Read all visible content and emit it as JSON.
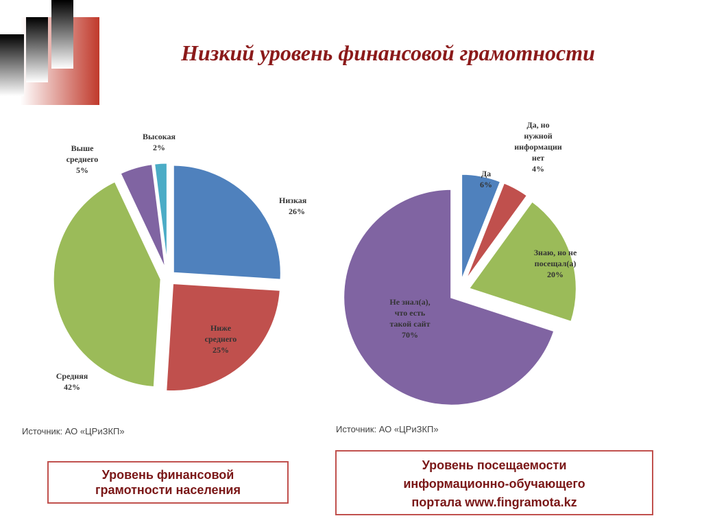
{
  "title": "Низкий уровень финансовой грамотности",
  "chart_data": [
    {
      "type": "pie",
      "categories": [
        "Низкая",
        "Ниже\nсреднего",
        "Средняя",
        "Выше\nсреднего",
        "Высокая"
      ],
      "values": [
        26,
        25,
        42,
        5,
        2
      ],
      "value_labels": [
        "26%",
        "25%",
        "42%",
        "5%",
        "2%"
      ],
      "colors": [
        "#4f81bd",
        "#c0504d",
        "#9bbb59",
        "#8064a2",
        "#4bacc6"
      ],
      "source": "Источник: АО «ЦРиЗКП»",
      "caption": "Уровень финансовой\nграмотности населения"
    },
    {
      "type": "pie",
      "categories": [
        "Да",
        "Да, но\nнужной\nинформации\nнет",
        "Знаю, но не\nпосещал(а)",
        "Не знал(а),\nчто есть\nтакой сайт"
      ],
      "values": [
        6,
        4,
        20,
        70
      ],
      "value_labels": [
        "6%",
        "4%",
        "20%",
        "70%"
      ],
      "colors": [
        "#4f81bd",
        "#c0504d",
        "#9bbb59",
        "#8064a2"
      ],
      "source": "Источник: АО «ЦРиЗКП»",
      "caption": "Уровень посещаемости\nинформационно-обучающего\nпортала www.fingramota.kz"
    }
  ]
}
